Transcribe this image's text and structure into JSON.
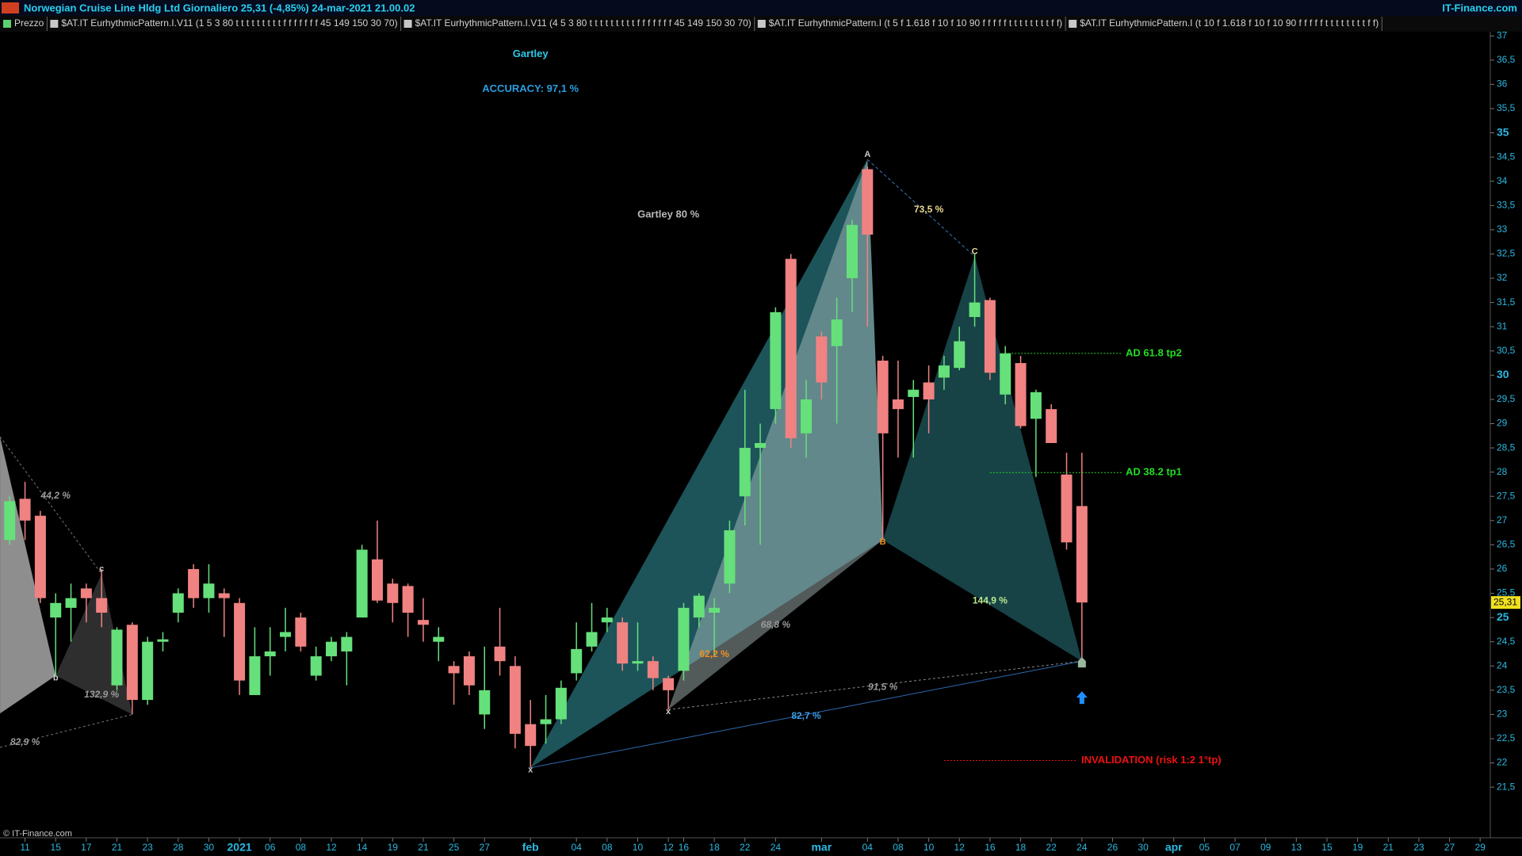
{
  "header": {
    "title": "Norwegian Cruise Line Hldg Ltd Giornaliero 25,31 (-4,85%) 24-mar-2021 21.00.02",
    "brand": "IT-Finance.com",
    "legend": [
      "Prezzo",
      "$AT.IT EurhythmicPattern.I.V11 (1 5 3 80 t t t t t t t t t f f f f f f f 45 149 150 30 70)",
      "$AT.IT EurhythmicPattern.I.V11 (4 5 3 80 t t t t t t t t t f f f f f f f 45 149 150 30 70)",
      "$AT.IT EurhythmicPattern.I (t 5 f 1.618 f 10 f 10 90 f f f f f t t t t t t t t f f)",
      "$AT.IT EurhythmicPattern.I (t 10 f 1.618 f 10 f 10 90 f f f f f t t t t t t t t f f)"
    ]
  },
  "footer": {
    "copyright": "© IT-Finance.com"
  },
  "chart_data": {
    "type": "candlestick",
    "up_color": "#66e07a",
    "down_color": "#f08282",
    "categories": [
      null,
      "11",
      null,
      "15",
      null,
      "17",
      null,
      "21",
      null,
      "23",
      null,
      "28",
      null,
      "30",
      null,
      "2021",
      null,
      "06",
      null,
      "08",
      null,
      "12",
      null,
      "14",
      null,
      "19",
      null,
      "21",
      null,
      "25",
      null,
      "27",
      null,
      null,
      "feb",
      null,
      null,
      "04",
      null,
      "08",
      null,
      "10",
      null,
      "12",
      "16",
      null,
      "18",
      null,
      "22",
      null,
      "24",
      null,
      null,
      "mar",
      null,
      null,
      "04",
      null,
      "08",
      null,
      "10",
      null,
      "12",
      null,
      "16",
      null,
      "18",
      null,
      "22",
      null,
      "24",
      null,
      "26",
      null,
      "30",
      null,
      "apr",
      null,
      "05",
      null,
      "07",
      null,
      "09",
      null,
      "13",
      null,
      "15",
      null,
      "19",
      null,
      "21",
      null,
      "23",
      null,
      "27",
      null,
      "29"
    ],
    "open": [
      26.6,
      27.45,
      27.1,
      25.0,
      25.2,
      25.6,
      25.4,
      23.6,
      24.85,
      23.3,
      24.5,
      25.1,
      26.0,
      25.4,
      25.5,
      25.3,
      23.4,
      24.2,
      24.6,
      25.0,
      23.8,
      24.2,
      24.3,
      25.0,
      26.2,
      25.7,
      25.65,
      24.95,
      24.5,
      24.0,
      24.2,
      23.0,
      24.4,
      24.0,
      22.8,
      22.8,
      22.9,
      23.85,
      24.4,
      24.9,
      24.9,
      24.05,
      24.1,
      23.75,
      23.9,
      25.0,
      25.1,
      25.7,
      27.5,
      28.5,
      29.3,
      32.4,
      28.8,
      30.8,
      30.6,
      32.0,
      34.25,
      30.3,
      29.5,
      29.55,
      29.85,
      29.95,
      30.15,
      31.2,
      31.55,
      29.6,
      30.25,
      29.1,
      29.3,
      27.95,
      27.3,
      null,
      null,
      null,
      null,
      null,
      null,
      null,
      null,
      null,
      null,
      null,
      null,
      null,
      null,
      null,
      null,
      null,
      null,
      null,
      null,
      null,
      null,
      null,
      null,
      null,
      null
    ],
    "high": [
      27.5,
      27.8,
      27.2,
      25.5,
      25.7,
      25.7,
      26.0,
      24.8,
      24.9,
      24.6,
      24.7,
      25.6,
      26.1,
      26.1,
      25.6,
      25.4,
      24.8,
      24.8,
      25.2,
      25.1,
      24.4,
      24.6,
      24.7,
      26.5,
      27.0,
      25.8,
      25.7,
      25.4,
      24.8,
      24.1,
      24.3,
      24.4,
      25.2,
      24.2,
      23.3,
      23.4,
      23.7,
      24.9,
      25.3,
      25.2,
      25.0,
      24.9,
      24.2,
      23.8,
      25.3,
      25.5,
      25.4,
      27.0,
      29.7,
      29.0,
      31.4,
      32.5,
      29.9,
      30.9,
      31.6,
      33.2,
      34.3,
      30.4,
      30.3,
      29.9,
      30.2,
      30.4,
      31.0,
      32.5,
      31.6,
      30.6,
      30.4,
      29.7,
      29.4,
      28.4,
      28.4,
      null,
      null,
      null,
      null,
      null,
      null,
      null,
      null,
      null,
      null,
      null,
      null,
      null,
      null,
      null,
      null,
      null,
      null,
      null,
      null,
      null,
      null,
      null,
      null,
      null,
      null
    ],
    "low": [
      26.5,
      26.6,
      25.3,
      23.8,
      24.5,
      24.9,
      24.8,
      23.5,
      23.0,
      23.2,
      24.3,
      24.9,
      25.2,
      25.1,
      24.6,
      23.4,
      23.4,
      23.8,
      24.3,
      24.3,
      23.7,
      24.1,
      23.6,
      25.0,
      25.3,
      24.9,
      24.6,
      24.5,
      24.1,
      23.2,
      23.4,
      22.7,
      23.8,
      22.3,
      21.9,
      22.4,
      22.8,
      23.7,
      24.3,
      24.7,
      23.9,
      23.9,
      23.5,
      23.1,
      23.7,
      24.8,
      24.2,
      25.5,
      26.9,
      26.5,
      29.0,
      28.5,
      28.3,
      29.5,
      29.0,
      31.3,
      31.0,
      26.6,
      28.3,
      28.3,
      28.8,
      29.7,
      30.1,
      31.0,
      29.9,
      29.4,
      28.9,
      27.9,
      28.6,
      26.4,
      24.0,
      null,
      null,
      null,
      null,
      null,
      null,
      null,
      null,
      null,
      null,
      null,
      null,
      null,
      null,
      null,
      null,
      null,
      null,
      null,
      null,
      null,
      null,
      null,
      null,
      null,
      null
    ],
    "close": [
      27.4,
      27.0,
      25.4,
      25.3,
      25.4,
      25.4,
      25.1,
      24.75,
      23.3,
      24.5,
      24.55,
      25.5,
      25.4,
      25.7,
      25.4,
      23.7,
      24.2,
      24.3,
      24.7,
      24.4,
      24.2,
      24.5,
      24.6,
      26.4,
      25.35,
      25.3,
      25.1,
      24.85,
      24.6,
      23.85,
      23.6,
      23.5,
      24.1,
      22.6,
      22.35,
      22.9,
      23.55,
      24.35,
      24.7,
      25.0,
      24.05,
      24.1,
      23.75,
      23.5,
      25.2,
      25.45,
      25.2,
      26.8,
      28.5,
      28.6,
      31.3,
      28.7,
      29.5,
      29.85,
      31.15,
      33.1,
      32.9,
      28.8,
      29.3,
      29.7,
      29.5,
      30.2,
      30.7,
      31.5,
      30.05,
      30.45,
      28.95,
      29.65,
      28.6,
      26.55,
      25.31,
      null,
      null,
      null,
      null,
      null,
      null,
      null,
      null,
      null,
      null,
      null,
      null,
      null,
      null,
      null,
      null,
      null,
      null,
      null,
      null,
      null,
      null,
      null,
      null,
      null,
      null
    ],
    "ylim": [
      20.48,
      37.1
    ],
    "yticks": [
      {
        "value": 21.5,
        "label": "21,5"
      },
      22,
      {
        "value": 22.5,
        "label": "22,5"
      },
      23,
      {
        "value": 23.5,
        "label": "23,5"
      },
      24,
      {
        "value": 24.5,
        "label": "24,5"
      },
      25,
      {
        "value": 25.5,
        "label": "25,5"
      },
      26,
      {
        "value": 26.5,
        "label": "26,5"
      },
      27,
      {
        "value": 27.5,
        "label": "27,5"
      },
      28,
      {
        "value": 28.5,
        "label": "28,5"
      },
      29,
      {
        "value": 29.5,
        "label": "29,5"
      },
      30,
      {
        "value": 30.5,
        "label": "30,5"
      },
      31,
      {
        "value": 31.5,
        "label": "31,5"
      },
      32,
      {
        "value": 32.5,
        "label": "32,5"
      },
      33,
      {
        "value": 33.5,
        "label": "33,5"
      },
      34,
      {
        "value": 34.5,
        "label": "34,5"
      },
      35,
      {
        "value": 35.5,
        "label": "35,5"
      },
      36,
      {
        "value": 36.5,
        "label": "36,5"
      },
      37
    ],
    "last_price": {
      "value": 25.31,
      "label": "25,31"
    },
    "pattern_points": [
      {
        "x": 34,
        "y": 21.9,
        "label": "x"
      },
      {
        "x": 56,
        "y": 34.45,
        "label": "A"
      },
      {
        "x": 57,
        "y": 26.6,
        "label": "B"
      },
      {
        "x": 63,
        "y": 32.45,
        "label": "C"
      },
      {
        "x": 70,
        "y": 24.1
      },
      {
        "x": 43,
        "y": 23.1,
        "label": "x"
      },
      {
        "x": -0.63,
        "y": 28.73
      },
      {
        "x": 3,
        "y": 23.8,
        "label": "b"
      },
      {
        "x": 6,
        "y": 25.9,
        "label": "c"
      },
      {
        "x": 8,
        "y": 23.0
      },
      {
        "x": -0.63,
        "y": 23.02
      },
      {
        "x": -0.63,
        "y": 22.32
      }
    ],
    "annotations": [
      {
        "text": "Gartley",
        "x": 34,
        "y": 36.62,
        "color": "#2ec8e8"
      },
      {
        "text": "ACCURACY: 97,1 %",
        "x": 34,
        "y": 35.9,
        "color": "#2a9ee0"
      },
      {
        "text": "Gartley 80 %",
        "x": 43,
        "y": 33.31,
        "color": "#b8b8b8"
      },
      {
        "text": "73,5 %",
        "x": 60,
        "y": 33.41,
        "color": "#e8d890"
      },
      {
        "text": "62,2 %",
        "x": 46,
        "y": 24.24,
        "color": "#f09020"
      },
      {
        "text": "68,8 %",
        "x": 50,
        "y": 24.84,
        "color": "#9a9a9a"
      },
      {
        "text": "144,9 %",
        "x": 64,
        "y": 25.34,
        "color": "#b8e890"
      },
      {
        "text": "91,5 %",
        "x": 57,
        "y": 23.56,
        "color": "#9a9a9a"
      },
      {
        "text": "82,7 %",
        "x": 52,
        "y": 22.96,
        "color": "#3a9ee8"
      },
      {
        "text": "44,2 %",
        "x": 3,
        "y": 27.51,
        "color": "#9a9a9a"
      },
      {
        "text": "132,9 %",
        "x": 6,
        "y": 23.4,
        "color": "#9a9a9a"
      },
      {
        "text": "82,9 %",
        "x": 1,
        "y": 22.42,
        "color": "#9a9a9a"
      }
    ],
    "levels": [
      {
        "label": "AD 61.8 tp2",
        "value": 30.45,
        "from": 65,
        "to": 72.6,
        "color": "#22dd22"
      },
      {
        "label": "AD 38.2 tp1",
        "value": 27.99,
        "from": 64,
        "to": 72.6,
        "color": "#22dd22"
      },
      {
        "label": "INVALIDATION (risk 1:2 1°tp)",
        "value": 22.05,
        "from": 61,
        "to": 69.7,
        "color": "#ee1111"
      }
    ]
  }
}
